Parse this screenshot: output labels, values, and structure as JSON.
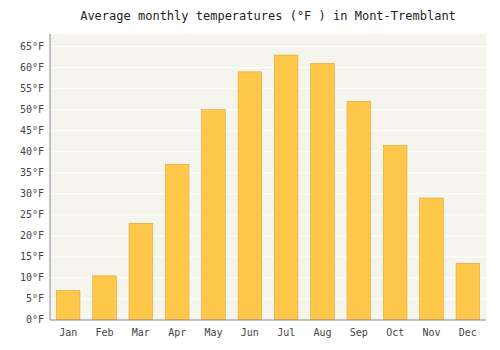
{
  "chart_data": {
    "type": "bar",
    "title": "Average monthly temperatures (°F ) in Mont-Tremblant",
    "categories": [
      "Jan",
      "Feb",
      "Mar",
      "Apr",
      "May",
      "Jun",
      "Jul",
      "Aug",
      "Sep",
      "Oct",
      "Nov",
      "Dec"
    ],
    "values": [
      7,
      10.5,
      23,
      37,
      50,
      59,
      63,
      61,
      52,
      41.5,
      29,
      13.5
    ],
    "color": "#FFC84A",
    "ylim": [
      0,
      68
    ],
    "yticks": [
      {
        "value": 0,
        "label": "0°F"
      },
      {
        "value": 5,
        "label": "5°F"
      },
      {
        "value": 10,
        "label": "10°F"
      },
      {
        "value": 15,
        "label": "15°F"
      },
      {
        "value": 20,
        "label": "20°F"
      },
      {
        "value": 25,
        "label": "25°F"
      },
      {
        "value": 30,
        "label": "30°F"
      },
      {
        "value": 35,
        "label": "35°F"
      },
      {
        "value": 40,
        "label": "40°F"
      },
      {
        "value": 45,
        "label": "45°F"
      },
      {
        "value": 50,
        "label": "50°F"
      },
      {
        "value": 55,
        "label": "55°F"
      },
      {
        "value": 60,
        "label": "60°F"
      },
      {
        "value": 65,
        "label": "65°F"
      }
    ],
    "grid": true
  }
}
